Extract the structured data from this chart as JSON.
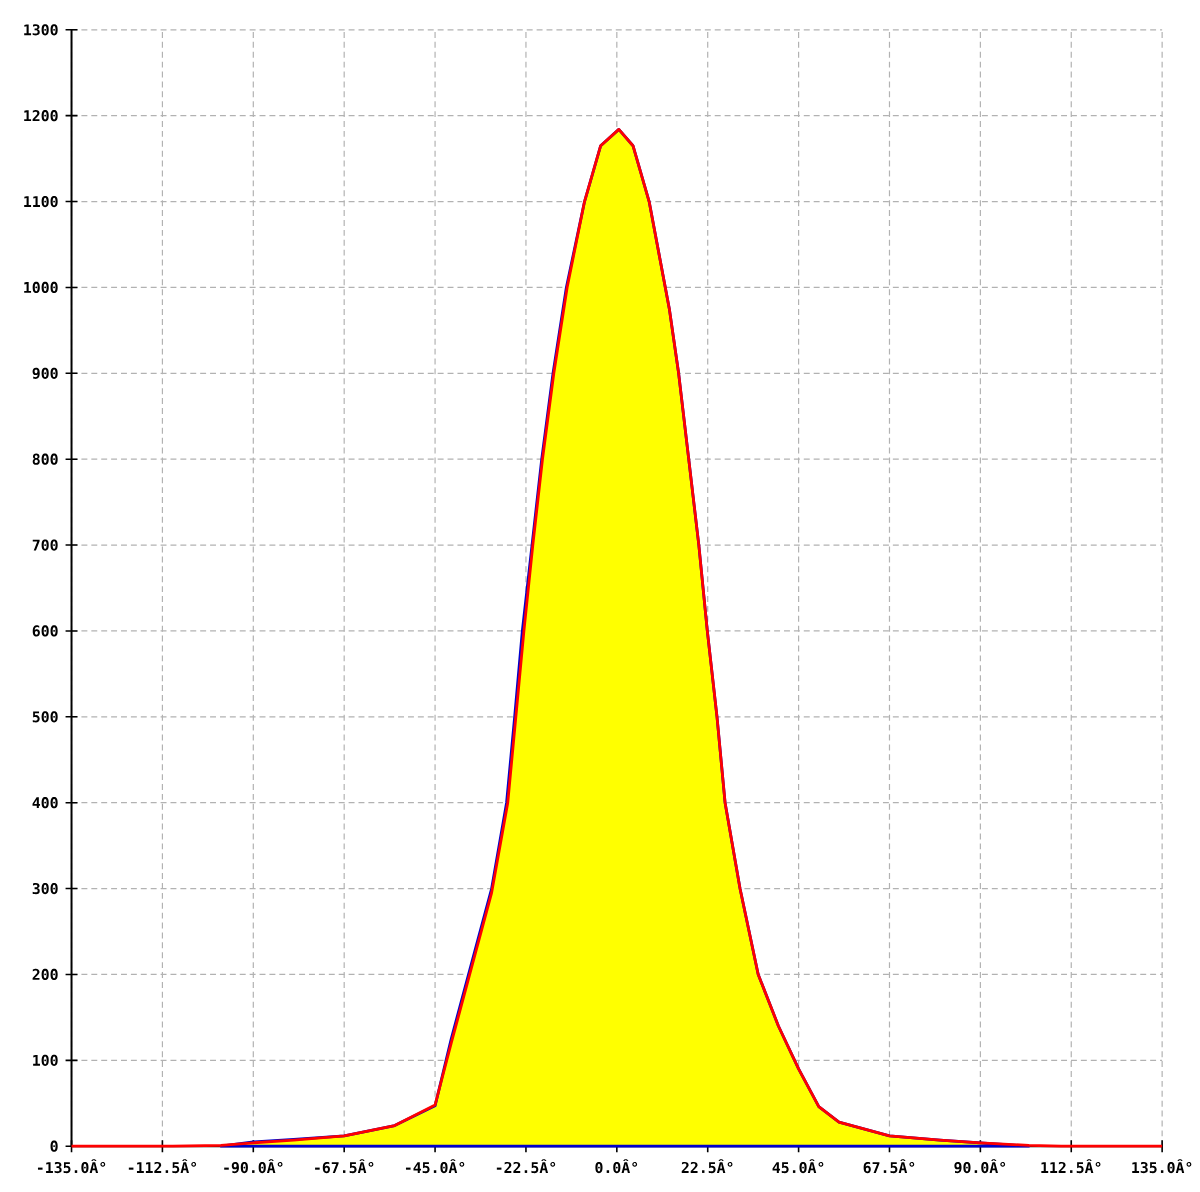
{
  "chart_data": {
    "type": "area",
    "xlim": [
      -135,
      135
    ],
    "ylim": [
      0,
      1300
    ],
    "xticks": [
      {
        "value": -135,
        "label": "-135.0Â°"
      },
      {
        "value": -112.5,
        "label": "-112.5Â°"
      },
      {
        "value": -90,
        "label": "-90.0Â°"
      },
      {
        "value": -67.5,
        "label": "-67.5Â°"
      },
      {
        "value": -45,
        "label": "-45.0Â°"
      },
      {
        "value": -22.5,
        "label": "-22.5Â°"
      },
      {
        "value": 0,
        "label": "0.0Â°"
      },
      {
        "value": 22.5,
        "label": "22.5Â°"
      },
      {
        "value": 45,
        "label": "45.0Â°"
      },
      {
        "value": 67.5,
        "label": "67.5Â°"
      },
      {
        "value": 90,
        "label": "90.0Â°"
      },
      {
        "value": 112.5,
        "label": "112.5Â°"
      },
      {
        "value": 135,
        "label": "135.0Â°"
      }
    ],
    "yticks": [
      0,
      100,
      200,
      300,
      400,
      500,
      600,
      700,
      800,
      900,
      1000,
      1100,
      1200,
      1300
    ],
    "grid": true,
    "series": [
      {
        "color": "#ffff00",
        "x": [
          -98,
          -90,
          -80,
          -67.5,
          -55,
          -45,
          -41,
          -35,
          -31,
          -27.3,
          -25.3,
          -23.4,
          -21,
          -18.6,
          -15.8,
          -12.5,
          -8,
          -4,
          0.5,
          4,
          8,
          12,
          13,
          15.3,
          17.8,
          20.3,
          22.4,
          24.8,
          26.8,
          30.5,
          35,
          40,
          45,
          50,
          55,
          67.5,
          80,
          90,
          102
        ],
        "values": [
          0,
          5,
          8,
          12,
          24,
          47,
          125,
          230,
          300,
          400,
          500,
          600,
          700,
          800,
          900,
          1000,
          1100,
          1165,
          1184,
          1165,
          1100,
          1000,
          975,
          900,
          800,
          700,
          600,
          500,
          400,
          300,
          200,
          140,
          90,
          46,
          28,
          12,
          7,
          4,
          0
        ]
      },
      {
        "type": "line",
        "color": "#ff0000",
        "x": [
          -135,
          -110,
          -98,
          -90,
          -80,
          -67.5,
          -55,
          -45,
          -41,
          -35,
          -31,
          -27,
          -25,
          -23,
          -20.8,
          -18.4,
          -15.6,
          -12.3,
          -8,
          -4,
          0.5,
          4,
          8,
          12,
          13,
          15.3,
          17.8,
          20.3,
          22.4,
          24.8,
          26.8,
          30.5,
          35,
          40,
          45,
          50,
          55,
          67.5,
          80,
          90,
          102,
          110,
          135
        ],
        "values": [
          0,
          0,
          1,
          4,
          7,
          12,
          24,
          48,
          120,
          225,
          295,
          400,
          500,
          600,
          700,
          800,
          900,
          1000,
          1100,
          1165,
          1184,
          1165,
          1100,
          1000,
          975,
          900,
          800,
          700,
          600,
          500,
          400,
          300,
          200,
          140,
          90,
          46,
          28,
          12,
          7,
          4,
          1,
          0,
          0
        ]
      }
    ]
  }
}
